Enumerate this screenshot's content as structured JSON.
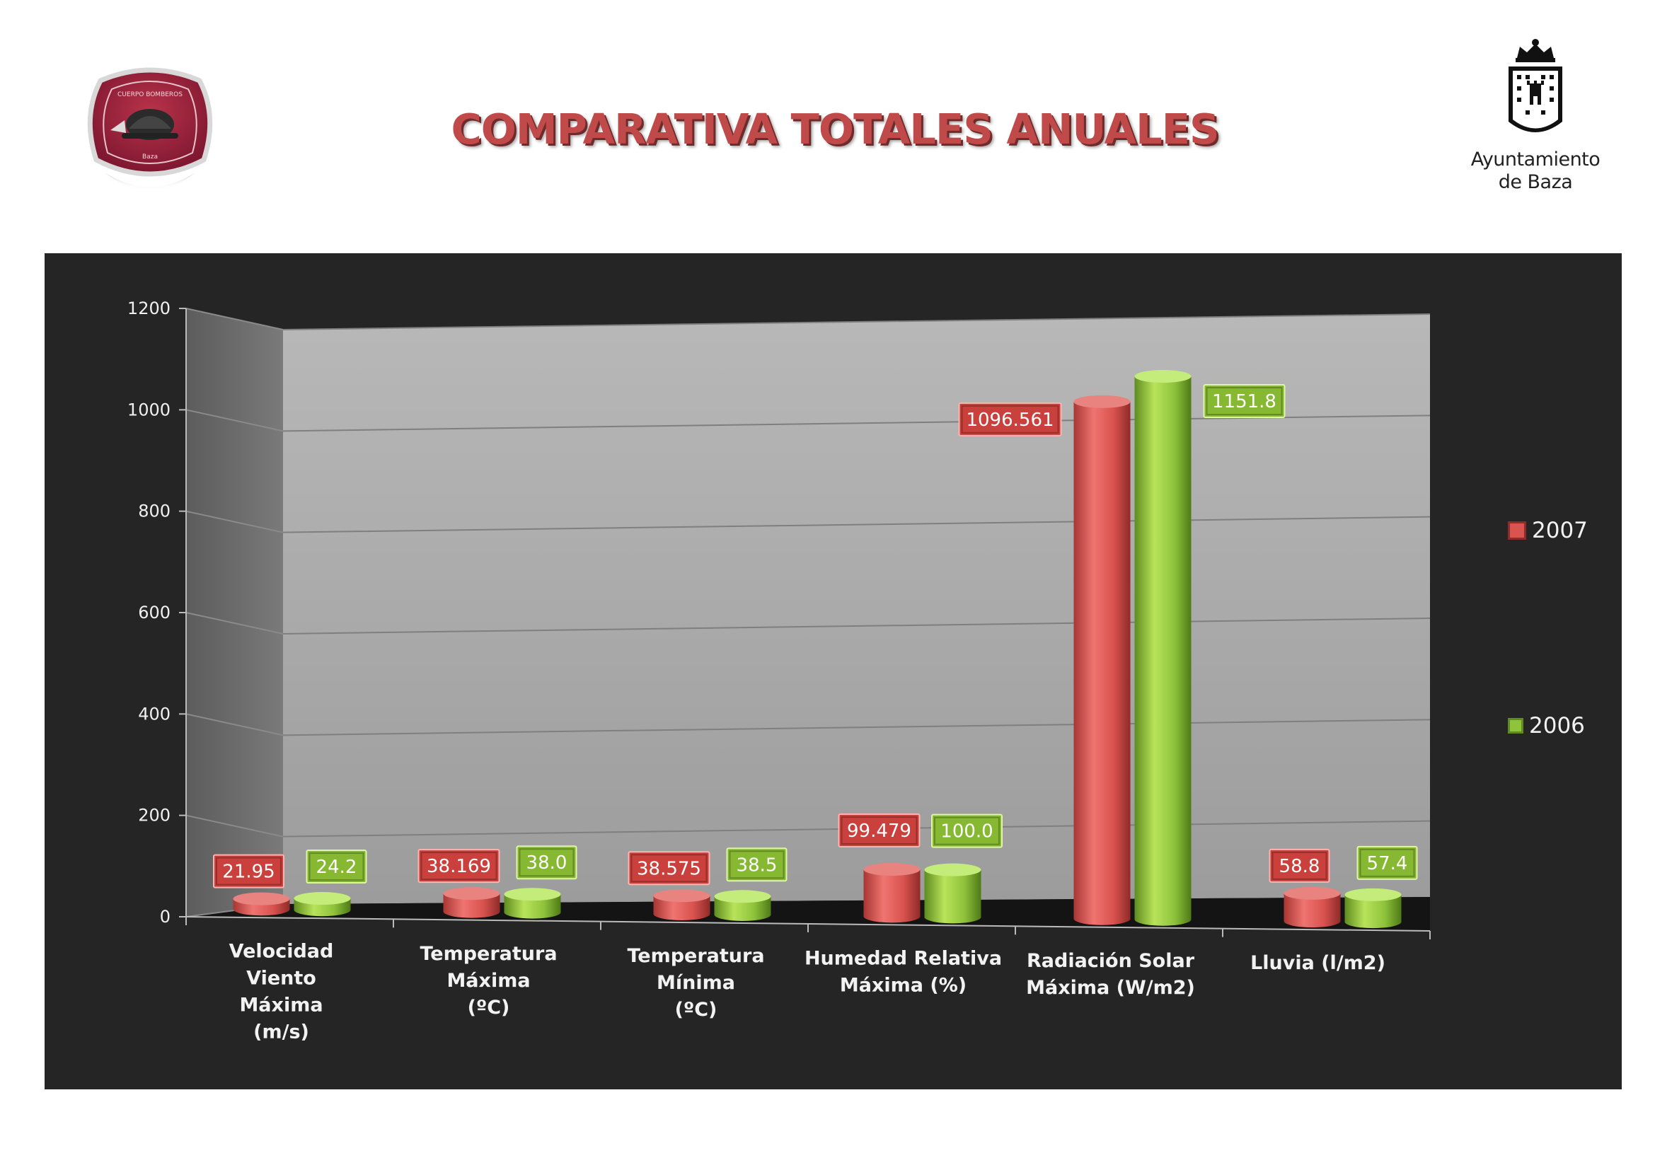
{
  "page": {
    "title": "COMPARATIVA TOTALES ANUALES",
    "logo_left_icon": "fire-brigade-badge-icon",
    "logo_left_text_top": "CUERPO BOMBEROS",
    "logo_left_text_bottom": "Baza",
    "logo_right_icon": "coat-of-arms-icon",
    "logo_right_line1": "Ayuntamiento",
    "logo_right_line2": "de Baza"
  },
  "colors": {
    "title": "#c04a4a",
    "series_2007": "#d9534f",
    "series_2006": "#8fc33b",
    "panel_background": "#252525",
    "plot_wall": "#a6a6a6"
  },
  "chart_data": {
    "type": "bar",
    "style": "3d-cylinder",
    "title": "",
    "xlabel": "",
    "ylabel": "",
    "ylim": [
      0,
      1200
    ],
    "yticks": [
      0,
      200,
      400,
      600,
      800,
      1000,
      1200
    ],
    "grid": true,
    "legend_position": "right",
    "categories": [
      [
        "Velocidad",
        "Viento",
        "Máxima",
        "(m/s)"
      ],
      [
        "Temperatura",
        "Máxima",
        "(ºC)"
      ],
      [
        "Temperatura",
        "Mínima",
        "(ºC)"
      ],
      [
        "Humedad Relativa",
        "Máxima (%)"
      ],
      [
        "Radiación Solar",
        "Máxima (W/m2)"
      ],
      [
        "Lluvia (l/m2)"
      ]
    ],
    "series": [
      {
        "name": "2007",
        "color": "#d9534f",
        "values": [
          21.95,
          38.169,
          38.575,
          99.479,
          1096.561,
          58.8
        ],
        "labels": [
          "21.95",
          "38.169",
          "38.575",
          "99.479",
          "1096.561",
          "58.8"
        ]
      },
      {
        "name": "2006",
        "color": "#8fc33b",
        "values": [
          24.2,
          38.0,
          38.5,
          100.0,
          1151.8,
          57.4
        ],
        "labels": [
          "24.2",
          "38.0",
          "38.5",
          "100.0",
          "1151.8",
          "57.4"
        ]
      }
    ]
  }
}
